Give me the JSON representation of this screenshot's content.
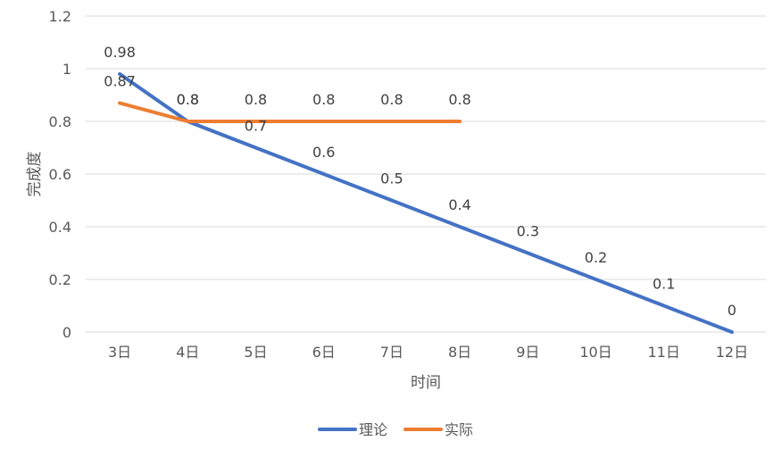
{
  "chart_data": {
    "type": "line",
    "categories": [
      "3日",
      "4日",
      "5日",
      "6日",
      "7日",
      "8日",
      "9日",
      "10日",
      "11日",
      "12日"
    ],
    "series": [
      {
        "name": "理论",
        "color": "#4472C4",
        "values": [
          0.98,
          0.8,
          0.7,
          0.6,
          0.5,
          0.4,
          0.3,
          0.2,
          0.1,
          0
        ]
      },
      {
        "name": "实际",
        "color": "#ED7D31",
        "values": [
          0.87,
          0.8,
          0.8,
          0.8,
          0.8,
          0.8,
          null,
          null,
          null,
          null
        ]
      }
    ],
    "xlabel": "时间",
    "ylabel": "完成度",
    "ylim": [
      0,
      1.2
    ],
    "yticks": [
      0,
      0.2,
      0.4,
      0.6,
      0.8,
      1,
      1.2
    ],
    "ytick_labels": [
      "0",
      "0.2",
      "0.4",
      "0.6",
      "0.8",
      "1",
      "1.2"
    ],
    "grid": true,
    "legend_position": "bottom",
    "data_labels": true
  }
}
